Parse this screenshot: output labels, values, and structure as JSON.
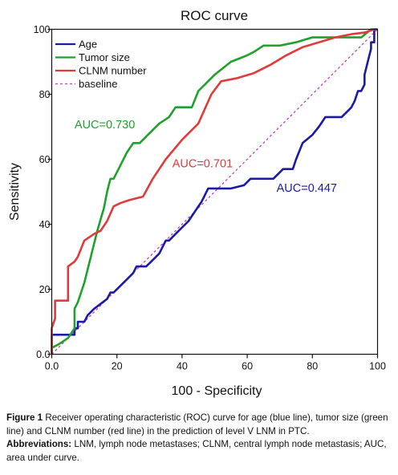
{
  "chart_data": {
    "type": "line",
    "title": "ROC curve",
    "xlabel": "100 - Specificity",
    "ylabel": "Sensitivity",
    "xlim": [
      0,
      100
    ],
    "ylim": [
      0,
      100
    ],
    "xticks": [
      "0.0",
      "20",
      "40",
      "60",
      "80",
      "100"
    ],
    "yticks": [
      "0.0",
      "20",
      "40",
      "60",
      "80",
      "100"
    ],
    "legend_position": "top-left",
    "series": [
      {
        "name": "Age",
        "color": "#1a1aa8",
        "dashed": false,
        "x": [
          0,
          0,
          7,
          7,
          8,
          8,
          10,
          11,
          13,
          15,
          17,
          18,
          19,
          21,
          23,
          25,
          26,
          28,
          29,
          31,
          33,
          34,
          35,
          36,
          38,
          40,
          42,
          44,
          46,
          48,
          50,
          53,
          55,
          59,
          61,
          63,
          66,
          67,
          68,
          71,
          72,
          74,
          75,
          77,
          80,
          82,
          84,
          87,
          89,
          91,
          92,
          93,
          94,
          95,
          96,
          96,
          97,
          98,
          98,
          99,
          99,
          100
        ],
        "y": [
          0,
          6,
          6,
          8,
          8,
          10,
          10,
          12,
          14,
          15.5,
          17,
          19,
          19,
          21,
          23,
          25,
          27,
          27,
          27,
          29,
          31,
          33,
          35,
          35,
          37,
          39,
          41,
          44,
          47,
          51,
          51,
          51,
          51,
          52,
          54,
          54,
          54,
          54,
          54,
          57,
          57,
          57,
          60,
          65,
          67.5,
          70,
          73,
          73,
          73,
          75,
          76,
          78,
          81,
          81,
          83,
          86,
          90,
          94,
          96,
          96,
          100,
          100
        ]
      },
      {
        "name": "Tumor size",
        "color": "#1fa12c",
        "dashed": false,
        "x": [
          0,
          0,
          2,
          5,
          7,
          7,
          8,
          10,
          12,
          14,
          16,
          17,
          18,
          19,
          20,
          21,
          23,
          25,
          27,
          28,
          30,
          33,
          36,
          38,
          40,
          43,
          45,
          47,
          50,
          55,
          60,
          62,
          65,
          70,
          75,
          80,
          85,
          90,
          95,
          98,
          99,
          100
        ],
        "y": [
          0,
          2,
          3,
          5,
          8,
          14,
          16,
          22,
          30,
          38,
          45,
          50,
          54,
          54,
          56,
          58,
          62,
          65,
          65,
          66,
          68,
          71,
          73,
          76,
          76,
          76,
          81,
          83,
          86,
          90,
          92,
          93,
          95,
          95,
          96,
          97.5,
          97.5,
          97.5,
          97.5,
          100,
          100,
          100
        ]
      },
      {
        "name": "CLNM number",
        "color": "#e03b3b",
        "dashed": false,
        "x": [
          0,
          0,
          1,
          1,
          3,
          5,
          5,
          7,
          8,
          10,
          13,
          15,
          17,
          19,
          21,
          24,
          28,
          31,
          35,
          40,
          45,
          49,
          52,
          57,
          62,
          67,
          72,
          77,
          82,
          87,
          92,
          96,
          99,
          100
        ],
        "y": [
          0,
          8,
          11,
          16.5,
          16.5,
          16.5,
          27,
          28.5,
          30,
          35,
          37,
          38,
          41,
          45.5,
          46.5,
          47.5,
          48.5,
          54,
          60,
          66,
          71,
          80,
          84,
          85,
          86.5,
          89,
          92,
          94.5,
          96,
          97.5,
          98.5,
          99,
          100,
          100
        ]
      },
      {
        "name": "baseline",
        "color": "#c23fc2",
        "dashed": true,
        "x": [
          0,
          100
        ],
        "y": [
          0,
          100
        ]
      }
    ],
    "annotations": [
      {
        "text": "AUC=0.730",
        "color": "#1fa12c",
        "x": 7,
        "y": 69.5
      },
      {
        "text": "AUC=0.701",
        "color": "#e03b3b",
        "x": 37,
        "y": 57.5
      },
      {
        "text": "AUC=0.447",
        "color": "#1a1aa8",
        "x": 69,
        "y": 50
      }
    ]
  },
  "caption": {
    "figure_label": "Figure 1",
    "text": "Receiver operating characteristic (ROC) curve for age (blue line), tumor size (green line) and CLNM number (red line) in the prediction of level V LNM in PTC.",
    "abbreviations_label": "Abbreviations:",
    "abbreviations_text": "LNM, lymph node metastases; CLNM, central lymph node metastasis; AUC, area under curve."
  }
}
